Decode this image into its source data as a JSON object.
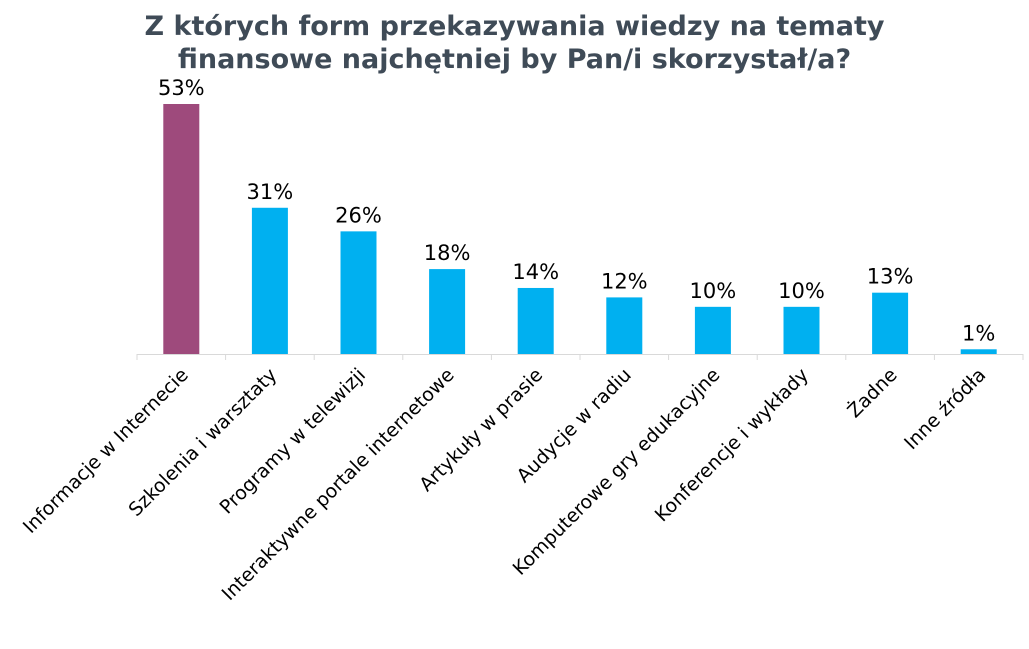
{
  "chart_data": {
    "type": "bar",
    "title_lines": [
      "Z których form przekazywania wiedzy na tematy",
      "finansowe najchętniej by Pan/i skorzystał/a?"
    ],
    "categories": [
      "Informacje w Internecie",
      "Szkolenia i warsztaty",
      "Programy w telewizji",
      "Interaktywne portale internetowe",
      "Artykuły w prasie",
      "Audycje w radiu",
      "Komputerowe gry edukacyjne",
      "Konferencje i wykłady",
      "Żadne",
      "Inne źródła"
    ],
    "values": [
      53,
      31,
      26,
      18,
      14,
      12,
      10,
      10,
      13,
      1
    ],
    "data_labels": [
      "53%",
      "31%",
      "26%",
      "18%",
      "14%",
      "12%",
      "10%",
      "10%",
      "13%",
      "1%"
    ],
    "highlight_index": 0,
    "colors": {
      "highlight": "#9e4a7c",
      "bar": "#00b0f0",
      "axis": "#d9d9d9"
    },
    "ylim": [
      0,
      53
    ],
    "grid": false,
    "legend": "none"
  }
}
